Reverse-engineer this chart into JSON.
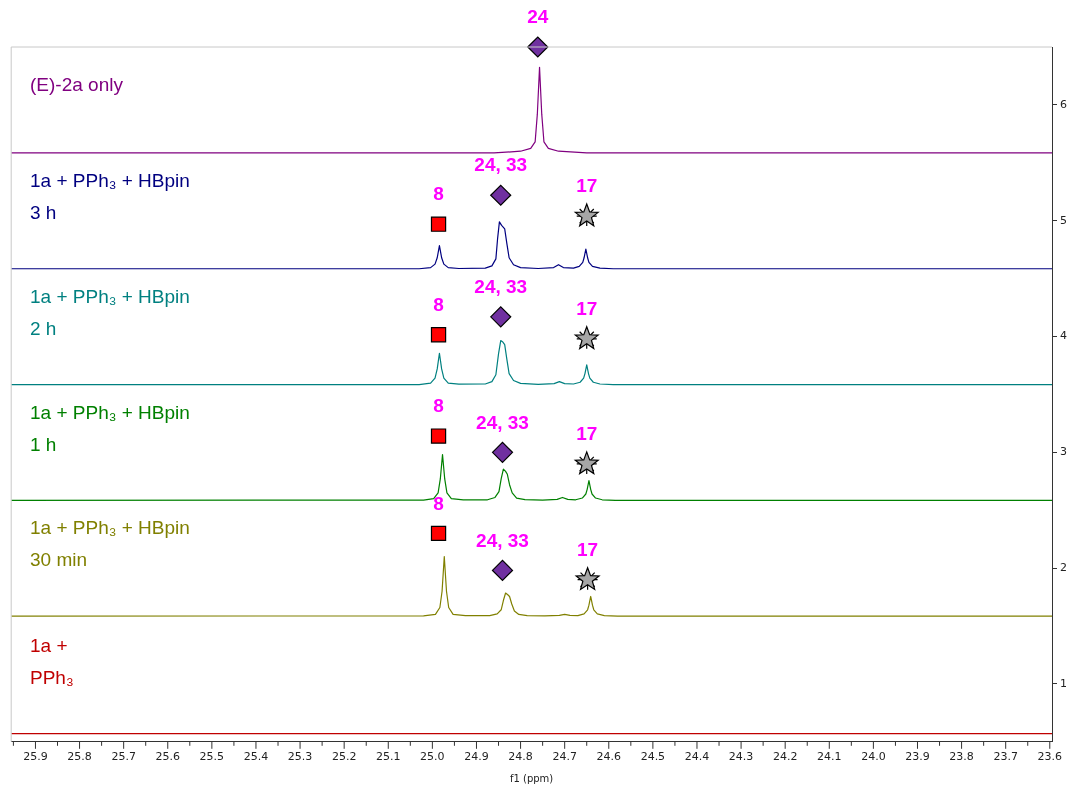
{
  "chart_data": {
    "type": "line",
    "xlabel": "f1 (ppm)",
    "xlim": [
      25.955,
      23.595
    ],
    "ylim": [
      0.5,
      6.5
    ],
    "annotations": [
      {
        "text": "24",
        "x": 24.761,
        "y": 6.5
      },
      {
        "text": "8",
        "x": 24.986,
        "y": 4.97
      },
      {
        "text": "8",
        "x": 24.986,
        "y": 4.015
      },
      {
        "text": "8",
        "x": 24.986,
        "y": 3.14
      },
      {
        "text": "8",
        "x": 24.986,
        "y": 2.3
      },
      {
        "text": "24, 33",
        "x": 24.845,
        "y": 5.22
      },
      {
        "text": "24, 33",
        "x": 24.845,
        "y": 4.17
      },
      {
        "text": "24, 33",
        "x": 24.841,
        "y": 3.0
      },
      {
        "text": "24, 33",
        "x": 24.841,
        "y": 1.98
      },
      {
        "text": "17",
        "x": 24.65,
        "y": 5.04
      },
      {
        "text": "17",
        "x": 24.65,
        "y": 3.98
      },
      {
        "text": "17",
        "x": 24.65,
        "y": 2.9
      },
      {
        "text": "17",
        "x": 24.648,
        "y": 1.9
      }
    ],
    "xticks": [
      25.9,
      25.8,
      25.7,
      25.6,
      25.5,
      25.4,
      25.3,
      25.2,
      25.1,
      {
        "value": 25,
        "label": "25.0"
      },
      24.9,
      24.8,
      24.7,
      24.6,
      24.5,
      24.4,
      24.3,
      24.2,
      24.1,
      {
        "value": 24,
        "label": "24.0"
      },
      23.9,
      23.8,
      23.7,
      23.6,
      {
        "value": 25.95,
        "label": null
      },
      {
        "value": 25.85,
        "label": null
      },
      {
        "value": 25.75,
        "label": null
      },
      {
        "value": 25.65,
        "label": null
      },
      {
        "value": 25.55,
        "label": null
      },
      {
        "value": 25.45,
        "label": null
      },
      {
        "value": 25.35,
        "label": null
      },
      {
        "value": 25.25,
        "label": null
      },
      {
        "value": 25.15,
        "label": null
      },
      {
        "value": 25.05,
        "label": null
      },
      {
        "value": 24.95,
        "label": null
      },
      {
        "value": 24.85,
        "label": null
      },
      {
        "value": 24.75,
        "label": null
      },
      {
        "value": 24.65,
        "label": null
      },
      {
        "value": 24.55,
        "label": null
      },
      {
        "value": 24.45,
        "label": null
      },
      {
        "value": 24.35,
        "label": null
      },
      {
        "value": 24.25,
        "label": null
      },
      {
        "value": 24.15,
        "label": null
      },
      {
        "value": 24.05,
        "label": null
      },
      {
        "value": 23.95,
        "label": null
      },
      {
        "value": 23.85,
        "label": null
      },
      {
        "value": 23.75,
        "label": null
      },
      {
        "value": 23.65,
        "label": null
      }
    ],
    "yticks": [
      1,
      2,
      3,
      4,
      5,
      6
    ],
    "legend": false,
    "marker": "none",
    "series": [
      {
        "name": "(E)-2a only",
        "color": "#800080",
        "x": [
          25.955,
          24.86,
          24.8,
          24.777,
          24.767,
          24.762,
          24.757,
          24.752,
          24.747,
          24.737,
          24.714,
          24.65,
          23.595
        ],
        "values": [
          5.585,
          5.585,
          5.6,
          5.625,
          5.68,
          5.92,
          6.325,
          5.92,
          5.68,
          5.625,
          5.6,
          5.585,
          5.585
        ]
      },
      {
        "name": "1a + PPh₃ + HBpin\n3 h",
        "color": "#000080",
        "x": [
          25.955,
          25.03,
          25.004,
          24.994,
          24.989,
          24.984,
          24.979,
          24.974,
          24.964,
          24.94,
          24.88,
          24.865,
          24.856,
          24.852,
          24.848,
          24.843,
          24.836,
          24.831,
          24.826,
          24.816,
          24.8,
          24.76,
          24.725,
          24.714,
          24.703,
          24.68,
          24.667,
          24.659,
          24.656,
          24.652,
          24.648,
          24.645,
          24.637,
          24.62,
          24.59,
          23.595
        ],
        "values": [
          4.585,
          4.585,
          4.595,
          4.625,
          4.68,
          4.785,
          4.68,
          4.625,
          4.595,
          4.587,
          4.59,
          4.61,
          4.67,
          4.85,
          4.99,
          4.96,
          4.93,
          4.8,
          4.68,
          4.62,
          4.595,
          4.587,
          4.595,
          4.62,
          4.595,
          4.59,
          4.605,
          4.64,
          4.68,
          4.755,
          4.68,
          4.64,
          4.605,
          4.59,
          4.585,
          4.585
        ]
      },
      {
        "name": "1a + PPh₃ + HBpin\n2 h",
        "color": "#008080",
        "x": [
          25.955,
          25.03,
          25.004,
          24.994,
          24.989,
          24.984,
          24.979,
          24.974,
          24.964,
          24.94,
          24.88,
          24.865,
          24.856,
          24.85,
          24.845,
          24.841,
          24.836,
          24.831,
          24.826,
          24.816,
          24.8,
          24.76,
          24.724,
          24.712,
          24.7,
          24.68,
          24.665,
          24.657,
          24.654,
          24.65,
          24.646,
          24.643,
          24.635,
          24.62,
          24.59,
          23.595
        ],
        "values": [
          3.585,
          3.585,
          3.597,
          3.64,
          3.72,
          3.855,
          3.72,
          3.64,
          3.597,
          3.588,
          3.59,
          3.61,
          3.67,
          3.85,
          3.965,
          3.955,
          3.93,
          3.8,
          3.68,
          3.62,
          3.595,
          3.587,
          3.593,
          3.61,
          3.593,
          3.59,
          3.605,
          3.64,
          3.68,
          3.755,
          3.68,
          3.64,
          3.605,
          3.59,
          3.585,
          3.585
        ]
      },
      {
        "name": "1a + PPh₃ + HBpin\n1 h",
        "color": "#008000",
        "x": [
          25.955,
          25.02,
          24.997,
          24.987,
          24.982,
          24.977,
          24.972,
          24.967,
          24.957,
          24.93,
          24.875,
          24.858,
          24.849,
          24.844,
          24.839,
          24.834,
          24.83,
          24.825,
          24.819,
          24.809,
          24.79,
          24.75,
          24.717,
          24.705,
          24.693,
          24.675,
          24.66,
          24.652,
          24.649,
          24.645,
          24.641,
          24.638,
          24.63,
          24.615,
          24.585,
          23.595
        ],
        "values": [
          2.585,
          2.587,
          2.6,
          2.65,
          2.77,
          2.98,
          2.77,
          2.65,
          2.6,
          2.589,
          2.59,
          2.61,
          2.66,
          2.77,
          2.855,
          2.835,
          2.81,
          2.72,
          2.65,
          2.605,
          2.592,
          2.587,
          2.593,
          2.61,
          2.593,
          2.59,
          2.605,
          2.64,
          2.68,
          2.755,
          2.68,
          2.64,
          2.605,
          2.59,
          2.585,
          2.585
        ]
      },
      {
        "name": "1a + PPh₃ + HBpin\n30 min",
        "color": "#808000",
        "x": [
          25.955,
          25.02,
          24.993,
          24.983,
          24.978,
          24.973,
          24.968,
          24.963,
          24.953,
          24.925,
          24.87,
          24.853,
          24.844,
          24.839,
          24.834,
          24.829,
          24.825,
          24.82,
          24.814,
          24.804,
          24.785,
          24.745,
          24.712,
          24.7,
          24.688,
          24.67,
          24.656,
          24.648,
          24.645,
          24.641,
          24.637,
          24.634,
          24.626,
          24.61,
          24.58,
          23.595
        ],
        "values": [
          1.585,
          1.587,
          1.6,
          1.66,
          1.8,
          2.1,
          1.8,
          1.66,
          1.6,
          1.589,
          1.59,
          1.605,
          1.64,
          1.72,
          1.785,
          1.77,
          1.755,
          1.69,
          1.63,
          1.6,
          1.59,
          1.587,
          1.592,
          1.6,
          1.592,
          1.59,
          1.605,
          1.64,
          1.68,
          1.755,
          1.68,
          1.64,
          1.605,
          1.59,
          1.585,
          1.585
        ]
      },
      {
        "name": "1a +\nPPh₃",
        "color": "#c00000",
        "x": [
          25.955,
          24.8,
          23.595
        ],
        "values": [
          0.57,
          0.57,
          0.57
        ]
      },
      {
        "type": "scatter",
        "marker": "square",
        "color": "#ff0000",
        "x": [
          24.986,
          24.986,
          24.986,
          24.986
        ],
        "values": [
          4.97,
          4.015,
          3.14,
          2.3
        ]
      },
      {
        "type": "scatter",
        "marker": "diamond",
        "color": "#7030a0",
        "x": [
          24.761,
          24.845,
          24.845,
          24.841,
          24.841
        ],
        "values": [
          6.5,
          5.22,
          4.17,
          3.0,
          1.98
        ]
      },
      {
        "type": "scatter",
        "marker": "star",
        "color": "#a6a6a6",
        "x": [
          24.65,
          24.65,
          24.65,
          24.648
        ],
        "values": [
          5.04,
          3.98,
          2.9,
          1.9
        ]
      }
    ]
  }
}
